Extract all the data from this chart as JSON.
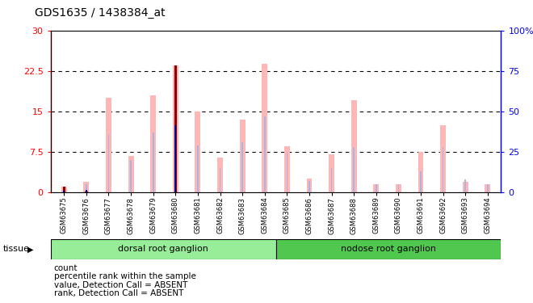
{
  "title": "GDS1635 / 1438384_at",
  "samples": [
    "GSM63675",
    "GSM63676",
    "GSM63677",
    "GSM63678",
    "GSM63679",
    "GSM63680",
    "GSM63681",
    "GSM63682",
    "GSM63683",
    "GSM63684",
    "GSM63685",
    "GSM63686",
    "GSM63687",
    "GSM63688",
    "GSM63689",
    "GSM63690",
    "GSM63691",
    "GSM63692",
    "GSM63693",
    "GSM63694"
  ],
  "value_absent": [
    1.0,
    2.0,
    17.5,
    6.8,
    18.0,
    23.5,
    15.0,
    6.5,
    13.5,
    23.8,
    8.5,
    2.5,
    7.0,
    17.0,
    1.5,
    1.5,
    7.5,
    12.5,
    2.0,
    1.5
  ],
  "rank_absent_pct": [
    3.0,
    5.0,
    36.0,
    20.0,
    37.0,
    43.0,
    29.0,
    15.0,
    31.0,
    47.0,
    25.0,
    7.0,
    15.0,
    28.0,
    5.0,
    5.0,
    13.0,
    28.0,
    8.0,
    5.0
  ],
  "count": [
    1.0,
    0.2,
    0,
    0,
    0,
    23.5,
    0,
    0,
    0,
    0,
    0,
    0,
    0,
    0,
    0,
    0,
    0,
    0,
    0,
    0
  ],
  "percentile_left": [
    0.3,
    0.5,
    0,
    0,
    0,
    12.5,
    0,
    0,
    0,
    0,
    0,
    0,
    0,
    0,
    0,
    0,
    0,
    0,
    0,
    0
  ],
  "group1_n": 10,
  "group2_n": 10,
  "group1_label": "dorsal root ganglion",
  "group2_label": "nodose root ganglion",
  "ylim_left": [
    0,
    30
  ],
  "ylim_right": [
    0,
    100
  ],
  "yticks_left": [
    0,
    7.5,
    15,
    22.5,
    30
  ],
  "ytick_labels_left": [
    "0",
    "7.5",
    "15",
    "22.5",
    "30"
  ],
  "yticks_right": [
    0,
    25,
    50,
    75,
    100
  ],
  "ytick_labels_right": [
    "0",
    "25",
    "50",
    "75",
    "100%"
  ],
  "color_value_absent": "#ffb6b6",
  "color_rank_absent": "#aab4e0",
  "color_count": "#8b0000",
  "color_percentile": "#00008b",
  "color_group1": "#98ee98",
  "color_group2": "#50c850",
  "bg_xtick": "#d0d0d0",
  "tissue_label": "tissue"
}
